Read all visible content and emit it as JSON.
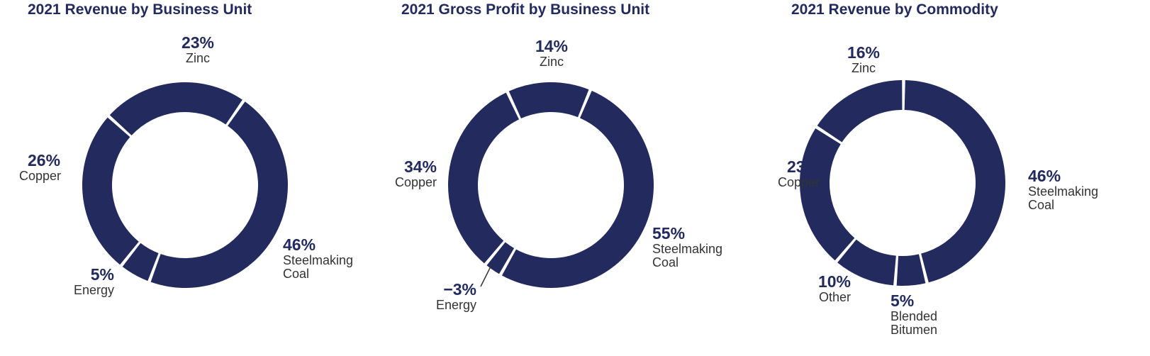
{
  "colors": {
    "segment": "#222a5e",
    "background": "#ffffff"
  },
  "chart_data": [
    {
      "type": "pie",
      "title": "2021 Revenue by Business Unit",
      "categories": [
        "Zinc",
        "Steelmaking Coal",
        "Energy",
        "Copper"
      ],
      "values": [
        23,
        46,
        5,
        26
      ],
      "labels": [
        "23%",
        "46%",
        "5%",
        "26%"
      ],
      "names": [
        "Zinc",
        "Steelmaking\nCoal",
        "Energy",
        "Copper"
      ]
    },
    {
      "type": "pie",
      "title": "2021 Gross Profit by Business Unit",
      "categories": [
        "Zinc",
        "Steelmaking Coal",
        "Energy",
        "Copper"
      ],
      "values": [
        14,
        55,
        -3,
        34
      ],
      "labels": [
        "14%",
        "55%",
        "−3%",
        "34%"
      ],
      "names": [
        "Zinc",
        "Steelmaking\nCoal",
        "Energy",
        "Copper"
      ]
    },
    {
      "type": "pie",
      "title": "2021 Revenue by Commodity",
      "categories": [
        "Zinc",
        "Steelmaking Coal",
        "Blended Bitumen",
        "Other",
        "Copper"
      ],
      "values": [
        16,
        46,
        5,
        10,
        23
      ],
      "labels": [
        "16%",
        "46%",
        "5%",
        "10%",
        "23%"
      ],
      "names": [
        "Zinc",
        "Steelmaking\nCoal",
        "Blended\nBitumen",
        "Other",
        "Copper"
      ]
    }
  ]
}
